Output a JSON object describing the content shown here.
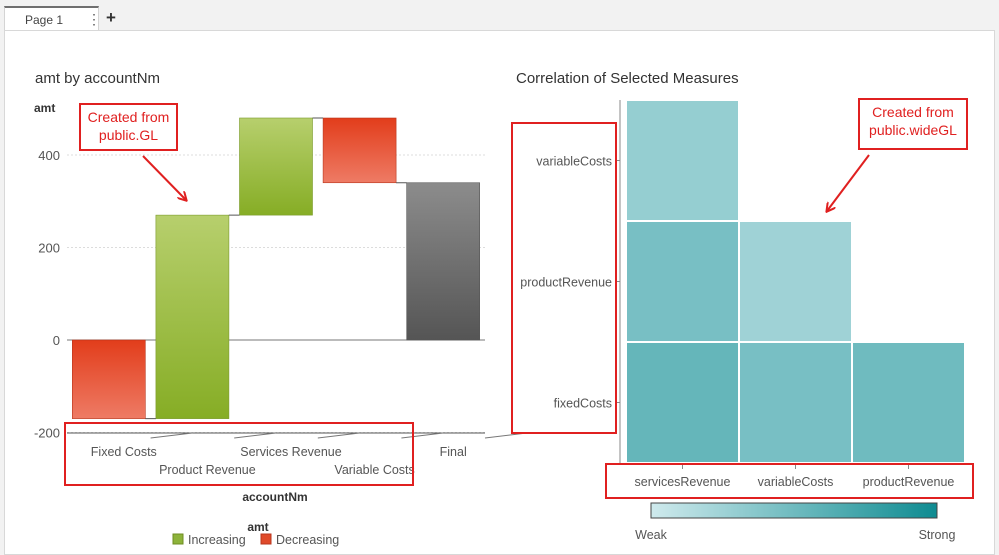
{
  "tabs": [
    {
      "label": "Page 1"
    }
  ],
  "icons": {
    "tab_menu": "vertical-ellipsis-icon",
    "add_tab": "plus-icon"
  },
  "colors": {
    "increasing": "#8db33a",
    "decreasing": "#e04a2a",
    "final": "#6a6a6a",
    "annotation": "#e02020",
    "heat_weak": "#cfeaed",
    "heat_strong": "#0e8b91"
  },
  "waterfall": {
    "title": "amt by accountNm",
    "xlabel": "accountNm",
    "ylabel": "amt",
    "legend_title": "amt",
    "legend": [
      {
        "label": "Increasing"
      },
      {
        "label": "Decreasing"
      }
    ],
    "annotation": "Created from public.GL"
  },
  "correlation": {
    "title": "Correlation of Selected Measures",
    "legend_low": "Weak",
    "legend_high": "Strong",
    "annotation": "Created from public.wideGL"
  },
  "chart_data": [
    {
      "type": "bar",
      "subtype": "waterfall",
      "title": "amt by accountNm",
      "xlabel": "accountNm",
      "ylabel": "amt",
      "categories": [
        "Fixed Costs",
        "Product Revenue",
        "Services Revenue",
        "Variable Costs",
        "Final"
      ],
      "values": [
        -170,
        440,
        210,
        -140,
        340
      ],
      "kinds": [
        "decreasing",
        "increasing",
        "increasing",
        "decreasing",
        "final"
      ],
      "y_ticks": [
        400,
        200,
        0,
        -200
      ],
      "ylim": [
        -200,
        480
      ],
      "grid": true,
      "legend": [
        "Increasing",
        "Decreasing"
      ],
      "legend_position": "bottom"
    },
    {
      "type": "heatmap",
      "title": "Correlation of Selected Measures",
      "x_categories": [
        "servicesRevenue",
        "variableCosts",
        "productRevenue"
      ],
      "y_categories": [
        "variableCosts",
        "productRevenue",
        "fixedCosts"
      ],
      "cells": [
        {
          "x": "servicesRevenue",
          "y": "variableCosts",
          "value": 0.3
        },
        {
          "x": "servicesRevenue",
          "y": "productRevenue",
          "value": 0.45
        },
        {
          "x": "variableCosts",
          "y": "productRevenue",
          "value": 0.25
        },
        {
          "x": "servicesRevenue",
          "y": "fixedCosts",
          "value": 0.55
        },
        {
          "x": "variableCosts",
          "y": "fixedCosts",
          "value": 0.45
        },
        {
          "x": "productRevenue",
          "y": "fixedCosts",
          "value": 0.5
        }
      ],
      "legend": [
        "Weak",
        "Strong"
      ],
      "legend_position": "bottom"
    }
  ]
}
